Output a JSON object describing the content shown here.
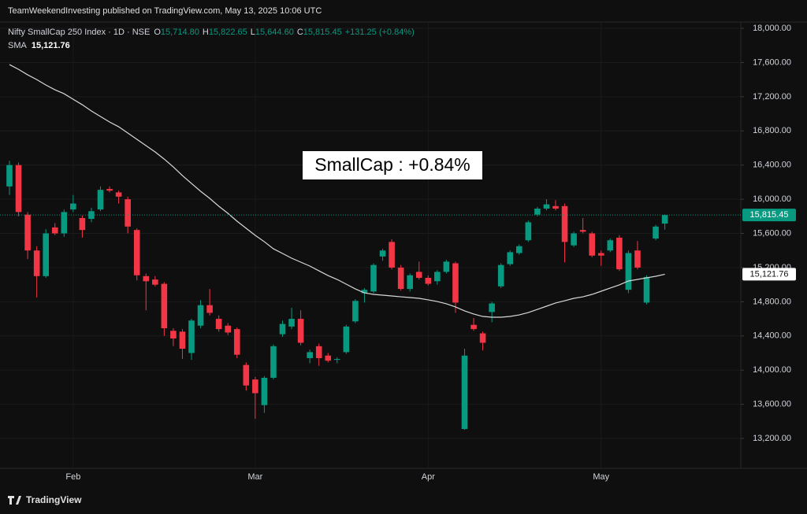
{
  "chart_data": {
    "type": "candlestick",
    "header": "TeamWeekendInvesting published on TradingView.com, May 13, 2025 10:06 UTC",
    "symbol": "Nifty SmallCap 250 Index · 1D · NSE",
    "ohlc": [
      {
        "key": "O",
        "text": "15,714.80"
      },
      {
        "key": "H",
        "text": "15,822.65"
      },
      {
        "key": "L",
        "text": "15,644.60"
      },
      {
        "key": "C",
        "text": "15,815.45"
      }
    ],
    "change": "+131.25 (+0.84%)",
    "annotation": "SmallCap : +0.84%",
    "footer": "TradingView",
    "up_color": "#089981",
    "down_color": "#f23645",
    "categories": [
      null,
      null,
      null,
      null,
      null,
      null,
      null,
      "Feb",
      null,
      null,
      null,
      null,
      null,
      null,
      null,
      null,
      null,
      null,
      null,
      null,
      null,
      null,
      null,
      null,
      null,
      null,
      null,
      "Mar",
      null,
      null,
      null,
      null,
      null,
      null,
      null,
      null,
      null,
      null,
      null,
      null,
      null,
      null,
      null,
      null,
      null,
      null,
      "Apr",
      null,
      null,
      null,
      null,
      null,
      null,
      null,
      null,
      null,
      null,
      null,
      null,
      null,
      null,
      null,
      null,
      null,
      null,
      "May",
      null,
      null,
      null,
      null,
      null,
      null,
      null
    ],
    "candles": {
      "open": [
        16150,
        16400,
        15820,
        15400,
        15100,
        15670,
        15600,
        15880,
        15780,
        15770,
        15880,
        16120,
        16080,
        16000,
        15640,
        15100,
        15060,
        15010,
        14460,
        14450,
        14200,
        14520,
        14760,
        14600,
        14520,
        14480,
        14060,
        13890,
        13590,
        13910,
        14420,
        14510,
        14600,
        14140,
        14280,
        14170,
        14120,
        14210,
        14570,
        14900,
        14920,
        15330,
        15500,
        15200,
        14950,
        15150,
        15080,
        15040,
        15150,
        15250,
        13310,
        14530,
        14430,
        14680,
        14980,
        15240,
        15370,
        15520,
        15820,
        15890,
        15920,
        15920,
        15460,
        15640,
        15600,
        15370,
        15400,
        15550,
        14940,
        15400,
        14790,
        15540,
        15714.8
      ],
      "high": [
        16450,
        16430,
        15850,
        15450,
        15650,
        15720,
        15880,
        16050,
        15810,
        15900,
        16150,
        16150,
        16100,
        16030,
        15660,
        15130,
        15100,
        15030,
        14490,
        14480,
        14600,
        14820,
        14950,
        14640,
        14550,
        14500,
        14090,
        13920,
        13930,
        14300,
        14580,
        14730,
        14700,
        14240,
        14310,
        14200,
        14150,
        14530,
        14830,
        14960,
        15250,
        15420,
        15530,
        15230,
        15130,
        15270,
        15110,
        15170,
        15290,
        15270,
        14250,
        14610,
        14450,
        14800,
        15250,
        15400,
        15470,
        15750,
        15910,
        16000,
        15990,
        15950,
        15620,
        15780,
        15620,
        15400,
        15540,
        15580,
        15400,
        15510,
        15110,
        15700,
        15822.65
      ],
      "low": [
        16050,
        15800,
        15300,
        14850,
        15080,
        15580,
        15560,
        15850,
        15550,
        15730,
        15860,
        16080,
        15950,
        15600,
        15050,
        14700,
        14980,
        14400,
        14280,
        14130,
        14120,
        14490,
        14640,
        14450,
        14410,
        14140,
        13760,
        13430,
        13500,
        13890,
        14390,
        14480,
        14290,
        14080,
        14050,
        14090,
        14080,
        14190,
        14550,
        14790,
        14900,
        15280,
        15180,
        14930,
        14920,
        15060,
        14990,
        15000,
        15130,
        14670,
        13300,
        14460,
        14230,
        14560,
        14960,
        15220,
        15350,
        15500,
        15800,
        15870,
        15870,
        15260,
        15440,
        15600,
        15320,
        15220,
        15380,
        15160,
        14900,
        15180,
        14770,
        15520,
        15644.6
      ],
      "close": [
        16400,
        15850,
        15400,
        15100,
        15600,
        15600,
        15850,
        15950,
        15640,
        15860,
        16110,
        16100,
        16030,
        15680,
        15110,
        15040,
        15000,
        14490,
        14370,
        14250,
        14580,
        14760,
        14670,
        14480,
        14440,
        14180,
        13820,
        13730,
        13910,
        14280,
        14540,
        14600,
        14320,
        14210,
        14140,
        14110,
        14130,
        14510,
        14810,
        14940,
        15230,
        15400,
        15200,
        14950,
        15110,
        15080,
        15010,
        15150,
        15270,
        14790,
        14170,
        14480,
        14320,
        14780,
        15230,
        15380,
        15450,
        15730,
        15890,
        15940,
        15890,
        15500,
        15600,
        15620,
        15340,
        15340,
        15520,
        15180,
        15370,
        15200,
        15090,
        15680,
        15815.45
      ]
    },
    "sma": {
      "name": "SMA",
      "color": "#d8d8d8",
      "value_label": "15,121.76",
      "values": [
        17576,
        17520,
        17456,
        17400,
        17337,
        17281,
        17235,
        17170,
        17106,
        17033,
        16968,
        16904,
        16848,
        16775,
        16701,
        16627,
        16554,
        16470,
        16378,
        16277,
        16185,
        16093,
        16010,
        15918,
        15835,
        15743,
        15660,
        15577,
        15503,
        15420,
        15365,
        15310,
        15264,
        15218,
        15162,
        15107,
        15061,
        15006,
        14950,
        14904,
        14886,
        14877,
        14868,
        14858,
        14849,
        14840,
        14822,
        14803,
        14776,
        14739,
        14693,
        14656,
        14628,
        14619,
        14619,
        14628,
        14646,
        14674,
        14711,
        14748,
        14785,
        14812,
        14840,
        14858,
        14886,
        14923,
        14960,
        14997,
        15043,
        15061,
        15080,
        15098,
        15121.76
      ]
    },
    "current_price": {
      "value": 15815.45,
      "label": "15,815.45"
    },
    "ylim": [
      12850,
      18074
    ],
    "yticks": [
      {
        "value": 13200,
        "label": "13,200.00"
      },
      {
        "value": 13600,
        "label": "13,600.00"
      },
      {
        "value": 14000,
        "label": "14,000.00"
      },
      {
        "value": 14400,
        "label": "14,400.00"
      },
      {
        "value": 14800,
        "label": "14,800.00"
      },
      {
        "value": 15200,
        "label": "15,200.00"
      },
      {
        "value": 15600,
        "label": "15,600.00"
      },
      {
        "value": 16000,
        "label": "16,000.00"
      },
      {
        "value": 16400,
        "label": "16,400.00"
      },
      {
        "value": 16800,
        "label": "16,800.00"
      },
      {
        "value": 17200,
        "label": "17,200.00"
      },
      {
        "value": 17600,
        "label": "17,600.00"
      },
      {
        "value": 18000,
        "label": "18,000.00"
      }
    ],
    "grid": true
  }
}
